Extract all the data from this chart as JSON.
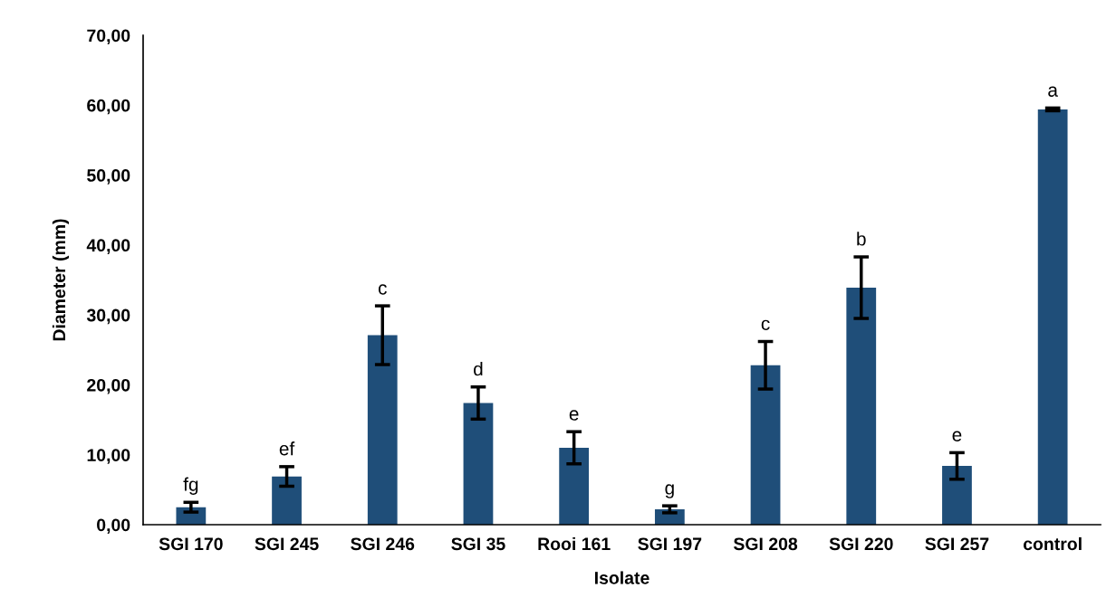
{
  "chart_data": {
    "type": "bar",
    "xlabel": "Isolate",
    "ylabel": "Diameter (mm)",
    "categories": [
      "SGI 170",
      "SGI 245",
      "SGI 246",
      "SGI 35",
      "Rooi 161",
      "SGI 197",
      "SGI 208",
      "SGI 220",
      "SGI 257",
      "control"
    ],
    "values": [
      2.5,
      6.9,
      27.1,
      17.4,
      11.0,
      2.2,
      22.8,
      33.9,
      8.4,
      59.4
    ],
    "errors": [
      0.7,
      1.4,
      4.2,
      2.3,
      2.3,
      0.5,
      3.4,
      4.4,
      1.9,
      0.2
    ],
    "color": "#1f4e79",
    "ylim": [
      0,
      70
    ],
    "yticks": [
      {
        "value": 0,
        "label": "0,00"
      },
      {
        "value": 10,
        "label": "10,00"
      },
      {
        "value": 20,
        "label": "20,00"
      },
      {
        "value": 30,
        "label": "30,00"
      },
      {
        "value": 40,
        "label": "40,00"
      },
      {
        "value": 50,
        "label": "50,00"
      },
      {
        "value": 60,
        "label": "60,00"
      },
      {
        "value": 70,
        "label": "70,00"
      }
    ],
    "annotations": [
      {
        "text": "fg",
        "x": "SGI 170",
        "y": 3.2
      },
      {
        "text": "ef",
        "x": "SGI 245",
        "y": 8.3
      },
      {
        "text": "c",
        "x": "SGI 246",
        "y": 31.3
      },
      {
        "text": "d",
        "x": "SGI 35",
        "y": 19.7
      },
      {
        "text": "e",
        "x": "Rooi 161",
        "y": 13.3
      },
      {
        "text": "g",
        "x": "SGI 197",
        "y": 2.7
      },
      {
        "text": "c",
        "x": "SGI 208",
        "y": 26.2
      },
      {
        "text": "b",
        "x": "SGI 220",
        "y": 38.3
      },
      {
        "text": "e",
        "x": "SGI 257",
        "y": 10.3
      },
      {
        "text": "a",
        "x": "control",
        "y": 59.6
      }
    ],
    "grid": false,
    "legend": false
  }
}
